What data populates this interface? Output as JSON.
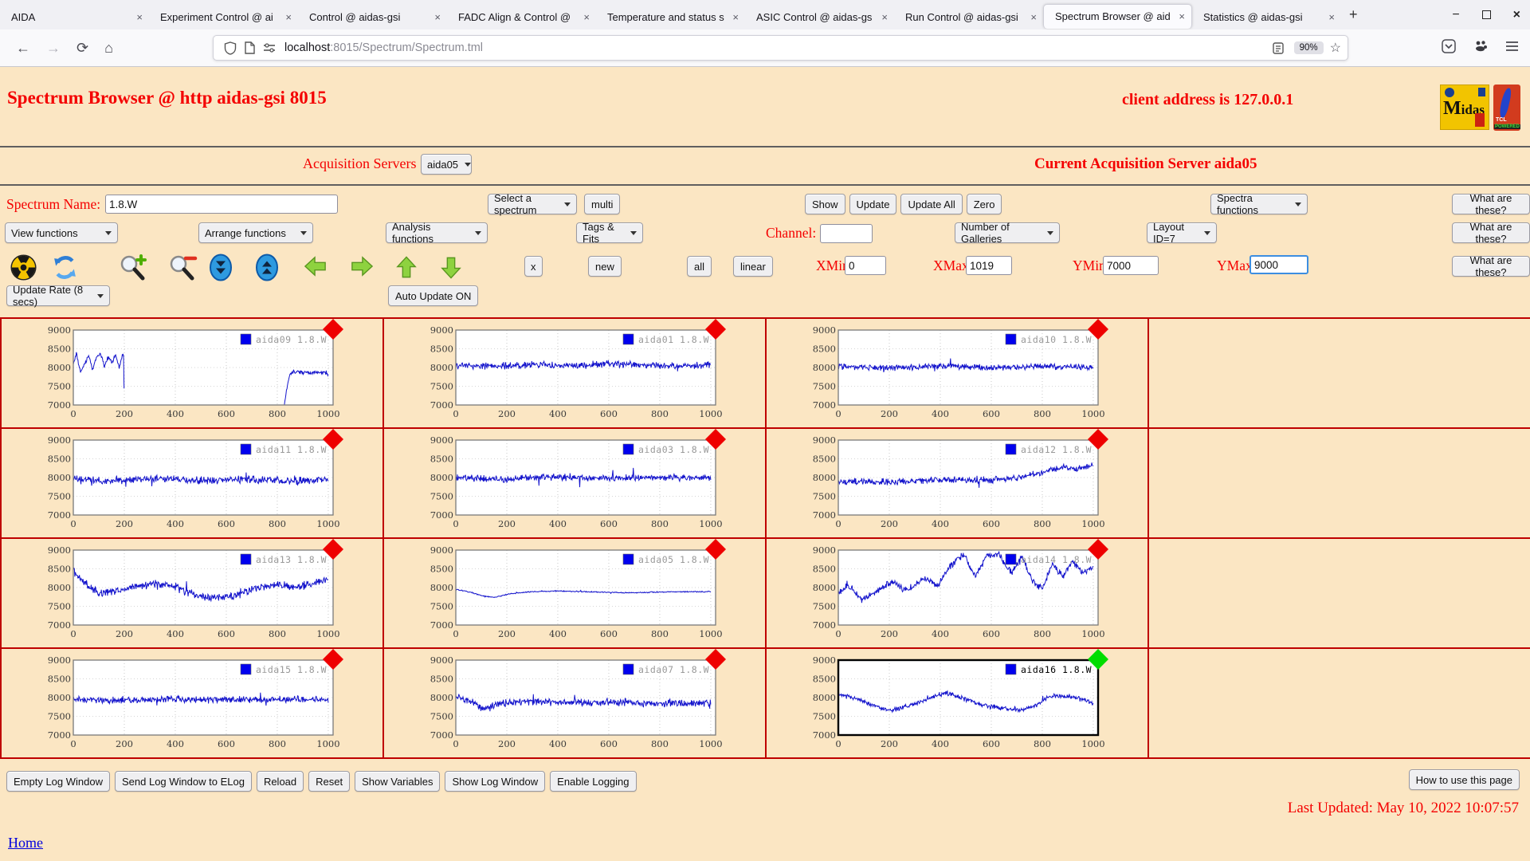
{
  "browser": {
    "tabs": [
      {
        "title": "AIDA",
        "active": false
      },
      {
        "title": "Experiment Control @ ai",
        "active": false
      },
      {
        "title": "Control @ aidas-gsi",
        "active": false
      },
      {
        "title": "FADC Align & Control @",
        "active": false
      },
      {
        "title": "Temperature and status s",
        "active": false
      },
      {
        "title": "ASIC Control @ aidas-gs",
        "active": false
      },
      {
        "title": "Run Control @ aidas-gsi",
        "active": false
      },
      {
        "title": "Spectrum Browser @ aid",
        "active": true
      },
      {
        "title": "Statistics @ aidas-gsi",
        "active": false
      }
    ],
    "new_tab_button": "+",
    "url": {
      "host": "localhost",
      "rest": ":8015/Spectrum/Spectrum.tml"
    },
    "zoom_badge": "90%",
    "icons": [
      "back-icon",
      "forward-icon",
      "reload-icon",
      "home-icon",
      "shield-icon",
      "page-icon",
      "permissions-icon",
      "reader-view-icon",
      "zoom-indicator",
      "bookmark-star-icon",
      "pocket-icon",
      "extension-icon",
      "menu-icon",
      "new-tab-icon",
      "minimize-icon",
      "maximize-icon",
      "close-icon"
    ]
  },
  "header": {
    "title": "Spectrum Browser @ http aidas-gsi 8015",
    "client": "client address is 127.0.0.1",
    "midas_logo_text": "Midas",
    "tcl_logo_text": "TCL",
    "tcl_logo_sub": "POWERED"
  },
  "acquisition": {
    "label": "Acquisition Servers",
    "server_selected": "aida05",
    "current": "Current Acquisition Server aida05"
  },
  "spectrum_row": {
    "name_label": "Spectrum Name:",
    "name_value": "1.8.W",
    "select_spectrum": "Select a spectrum",
    "multi": "multi",
    "show": "Show",
    "update": "Update",
    "update_all": "Update All",
    "zero": "Zero",
    "spectra_functions": "Spectra functions",
    "what": "What are these?"
  },
  "functions_row": {
    "view": "View functions",
    "arrange": "Arrange functions",
    "analysis": "Analysis functions",
    "tags": "Tags & Fits",
    "channel_label": "Channel:",
    "channel_value": "",
    "galleries": "Number of Galleries",
    "layout": "Layout ID=7",
    "what": "What are these?"
  },
  "tools_row": {
    "icon_names": [
      "radiation-icon",
      "refresh-icon",
      "zoom-in-icon",
      "zoom-out-icon",
      "scroll-down-icon",
      "scroll-up-icon",
      "arrow-left-icon",
      "arrow-right-icon",
      "arrow-up-icon",
      "arrow-down-icon"
    ],
    "x": "x",
    "new": "new",
    "all": "all",
    "linear": "linear",
    "xmin_label": "XMin",
    "xmin": "0",
    "xmax_label": "XMax",
    "xmax": "1019",
    "ymin_label": "YMin",
    "ymin": "7000",
    "ymax_label": "YMax",
    "ymax": "9000",
    "what": "What are these?"
  },
  "update_row": {
    "rate": "Update Rate (8 secs)",
    "auto": "Auto Update ON"
  },
  "footer": {
    "buttons": [
      "Empty Log Window",
      "Send Log Window to ELog",
      "Reload",
      "Reset",
      "Show Variables",
      "Show Log Window",
      "Enable Logging"
    ],
    "help": "How to use this page",
    "last_updated": "Last Updated: May 10, 2022 10:07:57",
    "home": "Home"
  },
  "colors": {
    "page_bg": "#fbe6c3",
    "accent_red": "#f40000",
    "grid_border": "#bf0000",
    "line_blue": "#1414cc",
    "marker_red": "#ee0000",
    "marker_green": "#00dd00"
  },
  "chart_data": {
    "type": "line",
    "xlabel": "",
    "ylabel": "",
    "xlim": [
      0,
      1019
    ],
    "ylim": [
      7000,
      9000
    ],
    "xticks": [
      0,
      200,
      400,
      600,
      800,
      1000
    ],
    "yticks": [
      7000,
      7500,
      8000,
      8500,
      9000
    ],
    "grid": true,
    "legend_position": "top-right",
    "line_color": "#1414cc",
    "layout": [
      [
        0,
        1,
        2,
        null
      ],
      [
        3,
        4,
        5,
        null
      ],
      [
        6,
        7,
        8,
        null
      ],
      [
        9,
        10,
        11,
        null
      ]
    ],
    "charts": [
      {
        "name": "aida09",
        "legend": "aida09 1.8.W",
        "marker": "#ee0000",
        "selected": false,
        "segments": [
          {
            "noise": 70,
            "env": [
              [
                0,
                8100
              ],
              [
                12,
                8350
              ],
              [
                28,
                7880
              ],
              [
                45,
                8080
              ],
              [
                60,
                8320
              ],
              [
                75,
                7950
              ],
              [
                92,
                8280
              ],
              [
                108,
                8380
              ],
              [
                122,
                8020
              ],
              [
                138,
                8300
              ],
              [
                152,
                8120
              ],
              [
                166,
                8330
              ],
              [
                180,
                7990
              ],
              [
                192,
                8330
              ],
              [
                197,
                8330
              ]
            ]
          },
          {
            "noise": 0,
            "env": [
              [
                197,
                8330
              ],
              [
                200,
                7000
              ]
            ]
          },
          {
            "noise": 60,
            "env": [
              [
                828,
                7000
              ],
              [
                838,
                7480
              ],
              [
                848,
                7780
              ],
              [
                860,
                7900
              ],
              [
                900,
                7860
              ],
              [
                950,
                7880
              ],
              [
                1000,
                7840
              ]
            ]
          }
        ]
      },
      {
        "name": "aida01",
        "legend": "aida01 1.8.W",
        "marker": "#ee0000",
        "selected": false,
        "segments": [
          {
            "noise": 110,
            "env": [
              [
                0,
                8060
              ],
              [
                150,
                8020
              ],
              [
                300,
                8080
              ],
              [
                450,
                8040
              ],
              [
                600,
                8100
              ],
              [
                750,
                8060
              ],
              [
                900,
                8040
              ],
              [
                1000,
                8080
              ]
            ]
          }
        ]
      },
      {
        "name": "aida10",
        "legend": "aida10 1.8.W",
        "marker": "#ee0000",
        "selected": false,
        "segments": [
          {
            "noise": 95,
            "env": [
              [
                0,
                8020
              ],
              [
                200,
                7980
              ],
              [
                400,
                8040
              ],
              [
                600,
                8000
              ],
              [
                800,
                8030
              ],
              [
                1000,
                8000
              ]
            ]
          }
        ]
      },
      {
        "name": "aida11",
        "legend": "aida11 1.8.W",
        "marker": "#ee0000",
        "selected": false,
        "segments": [
          {
            "noise": 115,
            "env": [
              [
                0,
                7960
              ],
              [
                150,
                7900
              ],
              [
                300,
                7980
              ],
              [
                500,
                7920
              ],
              [
                700,
                7960
              ],
              [
                850,
                7900
              ],
              [
                1000,
                7950
              ]
            ]
          }
        ]
      },
      {
        "name": "aida03",
        "legend": "aida03 1.8.W",
        "marker": "#ee0000",
        "selected": false,
        "segments": [
          {
            "noise": 110,
            "env": [
              [
                0,
                8000
              ],
              [
                200,
                7960
              ],
              [
                400,
                8020
              ],
              [
                600,
                7980
              ],
              [
                800,
                8010
              ],
              [
                1000,
                7990
              ]
            ]
          }
        ]
      },
      {
        "name": "aida12",
        "legend": "aida12 1.8.W",
        "marker": "#ee0000",
        "selected": false,
        "segments": [
          {
            "noise": 100,
            "env": [
              [
                0,
                7900
              ],
              [
                200,
                7880
              ],
              [
                400,
                7950
              ],
              [
                600,
                7930
              ],
              [
                700,
                8000
              ],
              [
                800,
                8120
              ],
              [
                880,
                8280
              ],
              [
                940,
                8240
              ],
              [
                1000,
                8330
              ]
            ]
          }
        ]
      },
      {
        "name": "aida13",
        "legend": "aida13 1.8.W",
        "marker": "#ee0000",
        "selected": false,
        "segments": [
          {
            "noise": 130,
            "env": [
              [
                0,
                8430
              ],
              [
                60,
                8050
              ],
              [
                100,
                7830
              ],
              [
                160,
                7900
              ],
              [
                240,
                8020
              ],
              [
                320,
                8100
              ],
              [
                400,
                8020
              ],
              [
                470,
                7820
              ],
              [
                540,
                7720
              ],
              [
                620,
                7750
              ],
              [
                700,
                7940
              ],
              [
                780,
                8090
              ],
              [
                860,
                8020
              ],
              [
                930,
                8080
              ],
              [
                1000,
                8240
              ]
            ]
          }
        ]
      },
      {
        "name": "aida05",
        "legend": "aida05 1.8.W",
        "marker": "#ee0000",
        "selected": false,
        "segments": [
          {
            "noise": 18,
            "env": [
              [
                0,
                7950
              ],
              [
                60,
                7870
              ],
              [
                110,
                7770
              ],
              [
                150,
                7740
              ],
              [
                220,
                7840
              ],
              [
                300,
                7890
              ],
              [
                400,
                7910
              ],
              [
                500,
                7890
              ],
              [
                600,
                7870
              ],
              [
                700,
                7860
              ],
              [
                800,
                7880
              ],
              [
                900,
                7890
              ],
              [
                1000,
                7890
              ]
            ]
          }
        ]
      },
      {
        "name": "aida14",
        "legend": "aida14 1.8.W",
        "marker": "#ee0000",
        "selected": false,
        "segments": [
          {
            "noise": 110,
            "env": [
              [
                0,
                7860
              ],
              [
                40,
                8080
              ],
              [
                90,
                7690
              ],
              [
                150,
                7890
              ],
              [
                210,
                8160
              ],
              [
                270,
                7910
              ],
              [
                330,
                8260
              ],
              [
                390,
                8060
              ],
              [
                440,
                8570
              ],
              [
                490,
                8880
              ],
              [
                540,
                8320
              ],
              [
                580,
                8840
              ],
              [
                630,
                8890
              ],
              [
                680,
                8380
              ],
              [
                720,
                8860
              ],
              [
                760,
                8160
              ],
              [
                800,
                7980
              ],
              [
                840,
                8620
              ],
              [
                880,
                8280
              ],
              [
                920,
                8700
              ],
              [
                960,
                8360
              ],
              [
                1000,
                8590
              ]
            ]
          }
        ]
      },
      {
        "name": "aida15",
        "legend": "aida15 1.8.W",
        "marker": "#ee0000",
        "selected": false,
        "segments": [
          {
            "noise": 105,
            "env": [
              [
                0,
                7950
              ],
              [
                200,
                7920
              ],
              [
                400,
                7970
              ],
              [
                600,
                7930
              ],
              [
                800,
                7960
              ],
              [
                1000,
                7940
              ]
            ]
          }
        ]
      },
      {
        "name": "aida07",
        "legend": "aida07 1.8.W",
        "marker": "#ee0000",
        "selected": false,
        "segments": [
          {
            "noise": 115,
            "env": [
              [
                0,
                8010
              ],
              [
                60,
                7900
              ],
              [
                110,
                7680
              ],
              [
                170,
                7840
              ],
              [
                260,
                7900
              ],
              [
                400,
                7870
              ],
              [
                600,
                7880
              ],
              [
                800,
                7850
              ],
              [
                1000,
                7860
              ]
            ]
          }
        ]
      },
      {
        "name": "aida16",
        "legend": "aida16 1.8.W",
        "marker": "#00dd00",
        "selected": true,
        "segments": [
          {
            "noise": 75,
            "env": [
              [
                0,
                8090
              ],
              [
                60,
                7990
              ],
              [
                120,
                7850
              ],
              [
                200,
                7640
              ],
              [
                260,
                7750
              ],
              [
                330,
                7900
              ],
              [
                420,
                8140
              ],
              [
                480,
                8000
              ],
              [
                560,
                7800
              ],
              [
                640,
                7720
              ],
              [
                720,
                7680
              ],
              [
                780,
                7790
              ],
              [
                820,
                8010
              ],
              [
                880,
                8060
              ],
              [
                930,
                8010
              ],
              [
                1000,
                7860
              ]
            ]
          }
        ]
      }
    ]
  }
}
